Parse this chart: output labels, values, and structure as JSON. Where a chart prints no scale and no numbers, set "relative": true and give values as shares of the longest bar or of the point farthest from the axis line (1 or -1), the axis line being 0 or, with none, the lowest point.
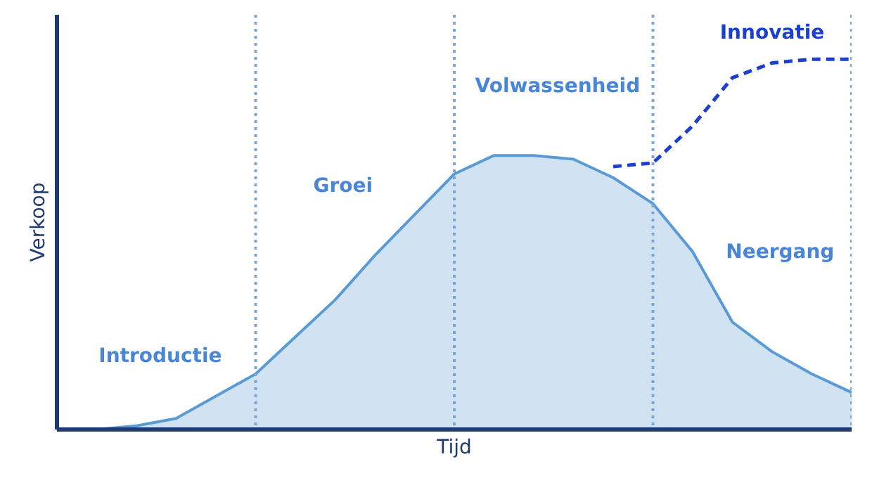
{
  "chart_data": {
    "type": "area",
    "relative": true,
    "xlabel": "Tijd",
    "ylabel": "Verkoop",
    "grid": "x",
    "categories": [
      null,
      null,
      null,
      null,
      null,
      null,
      null,
      null,
      null,
      null,
      null,
      null,
      null,
      null,
      null,
      null,
      null,
      null,
      null,
      null,
      null
    ],
    "series": [
      {
        "color": "#5b9bd5",
        "values": [
          0,
          0,
          0.01,
          0.03,
          0.09,
          0.15,
          0.25,
          0.35,
          0.47,
          0.58,
          0.69,
          0.74,
          0.74,
          0.73,
          0.68,
          0.61,
          0.48,
          0.29,
          0.21,
          0.15,
          0.1
        ]
      },
      {
        "name": "Innovatie",
        "type": "line",
        "line_style": "dashed",
        "color": "#1a3fd1",
        "values": [
          null,
          null,
          null,
          null,
          null,
          null,
          null,
          null,
          null,
          null,
          null,
          null,
          null,
          null,
          0.71,
          0.72,
          0.82,
          0.95,
          0.99,
          1.0,
          1.0
        ]
      }
    ],
    "annotations": [
      "Introductie",
      "Groei",
      "Volwassenheid",
      "Neergang"
    ]
  }
}
